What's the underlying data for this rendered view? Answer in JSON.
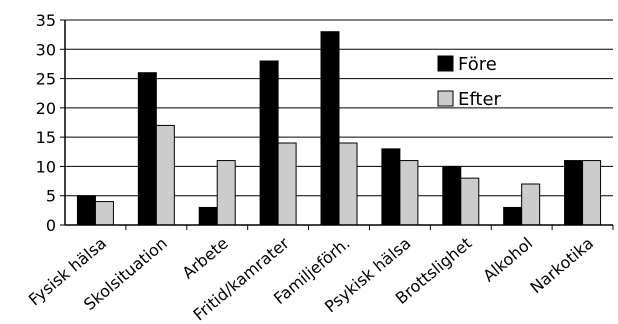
{
  "chart_data": {
    "type": "bar",
    "categories": [
      "Fysisk hälsa",
      "Skolsituation",
      "Arbete",
      "Fritid/kamrater",
      "Familjeförh.",
      "Psykisk hälsa",
      "Brottslighet",
      "Alkohol",
      "Narkotika"
    ],
    "series": [
      {
        "name": "Före",
        "values": [
          5,
          26,
          3,
          28,
          33,
          13,
          10,
          3,
          11
        ],
        "color": "#000000"
      },
      {
        "name": "Efter",
        "values": [
          4,
          17,
          11,
          14,
          14,
          11,
          8,
          7,
          11
        ],
        "color": "#cccccc"
      }
    ],
    "ylim": [
      0,
      35
    ],
    "yticks": [
      0,
      5,
      10,
      15,
      20,
      25,
      30,
      35
    ],
    "grid": true,
    "legend": "top-right"
  }
}
